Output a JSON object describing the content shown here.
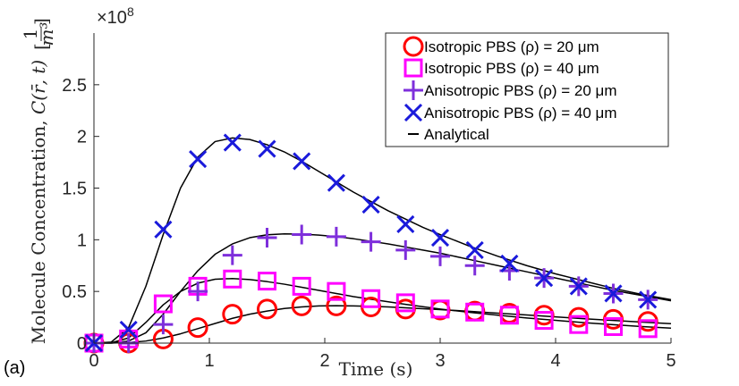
{
  "chart_data": {
    "type": "line",
    "panel_label": "(a)",
    "xlabel": "Time (s)",
    "ylabel": "Molecule Concentration, C(r̄, t) [1/m³]",
    "ylabel_plain": "Molecule Concentration, ",
    "ylabel_expr": "C(r̄, t)",
    "ylabel_unit_num": "1",
    "ylabel_unit_den": "m³",
    "y_multiplier": "×10",
    "y_multiplier_exp": "8",
    "xlim": [
      0,
      5
    ],
    "ylim": [
      0,
      3
    ],
    "xticks": [
      0,
      1,
      2,
      3,
      4,
      5
    ],
    "xtick_labels": [
      "0",
      "1",
      "2",
      "3",
      "4",
      "5"
    ],
    "yticks": [
      0,
      0.5,
      1,
      1.5,
      2,
      2.5
    ],
    "ytick_labels": [
      "0",
      "0.5",
      "1",
      "1.5",
      "2",
      "2.5"
    ],
    "grid": false,
    "legend_position": "top-right",
    "colors": {
      "iso20": "#ff0000",
      "iso40": "#ff00ff",
      "aniso20": "#7e2fdb",
      "aniso40": "#1a1adb",
      "analytical": "#000000"
    },
    "series": [
      {
        "name": "Isotropic PBS (ρ) = 20 μm",
        "marker": "circle",
        "x": [
          0,
          0.3,
          0.6,
          0.9,
          1.2,
          1.5,
          1.8,
          2.1,
          2.4,
          2.7,
          3.0,
          3.3,
          3.6,
          3.9,
          4.2,
          4.5,
          4.8
        ],
        "values": [
          0.0,
          0.0,
          0.04,
          0.15,
          0.28,
          0.33,
          0.36,
          0.36,
          0.35,
          0.33,
          0.32,
          0.31,
          0.29,
          0.27,
          0.25,
          0.23,
          0.21
        ]
      },
      {
        "name": "Isotropic PBS (ρ) = 40 μm",
        "marker": "square",
        "x": [
          0,
          0.3,
          0.6,
          0.9,
          1.2,
          1.5,
          1.8,
          2.1,
          2.4,
          2.7,
          3.0,
          3.3,
          3.6,
          3.9,
          4.2,
          4.5,
          4.8
        ],
        "values": [
          0.0,
          0.04,
          0.38,
          0.55,
          0.62,
          0.6,
          0.55,
          0.5,
          0.43,
          0.39,
          0.33,
          0.3,
          0.27,
          0.22,
          0.18,
          0.16,
          0.14
        ]
      },
      {
        "name": "Anisotropic PBS (ρ) = 20 μm",
        "marker": "plus",
        "x": [
          0,
          0.3,
          0.6,
          0.9,
          1.2,
          1.5,
          1.8,
          2.1,
          2.4,
          2.7,
          3.0,
          3.3,
          3.6,
          3.9,
          4.2,
          4.5,
          4.8
        ],
        "values": [
          0.0,
          0.0,
          0.18,
          0.5,
          0.85,
          1.02,
          1.05,
          1.03,
          0.98,
          0.9,
          0.84,
          0.75,
          0.7,
          0.63,
          0.55,
          0.48,
          0.42
        ]
      },
      {
        "name": "Anisotropic PBS (ρ) = 40 μm",
        "marker": "x",
        "x": [
          0,
          0.3,
          0.6,
          0.9,
          1.2,
          1.5,
          1.8,
          2.1,
          2.4,
          2.7,
          3.0,
          3.3,
          3.6,
          3.9,
          4.2,
          4.5,
          4.8
        ],
        "values": [
          0.0,
          0.13,
          1.1,
          1.78,
          1.94,
          1.88,
          1.76,
          1.55,
          1.34,
          1.15,
          1.02,
          0.9,
          0.77,
          0.63,
          0.55,
          0.48,
          0.42
        ]
      }
    ],
    "analytical": {
      "name": "Analytical",
      "curves": [
        {
          "x": [
            0,
            0.15,
            0.3,
            0.45,
            0.6,
            0.75,
            0.9,
            1.05,
            1.2,
            1.35,
            1.5,
            1.65,
            1.8,
            1.95,
            2.1,
            2.25,
            2.4,
            2.55,
            2.7,
            2.85,
            3.0,
            3.25,
            3.5,
            3.75,
            4.0,
            4.25,
            4.5,
            4.75,
            5.0
          ],
          "values": [
            0,
            0.0,
            0.005,
            0.02,
            0.05,
            0.09,
            0.14,
            0.19,
            0.24,
            0.28,
            0.31,
            0.335,
            0.35,
            0.36,
            0.362,
            0.36,
            0.356,
            0.35,
            0.342,
            0.333,
            0.324,
            0.308,
            0.29,
            0.272,
            0.254,
            0.236,
            0.219,
            0.203,
            0.188
          ]
        },
        {
          "x": [
            0,
            0.15,
            0.3,
            0.45,
            0.6,
            0.75,
            0.9,
            1.05,
            1.2,
            1.35,
            1.5,
            1.65,
            1.8,
            1.95,
            2.1,
            2.25,
            2.4,
            2.55,
            2.7,
            2.85,
            3.0,
            3.25,
            3.5,
            3.75,
            4.0,
            4.25,
            4.5,
            4.75,
            5.0
          ],
          "values": [
            0,
            0.003,
            0.05,
            0.2,
            0.37,
            0.5,
            0.58,
            0.618,
            0.625,
            0.615,
            0.595,
            0.57,
            0.54,
            0.51,
            0.48,
            0.45,
            0.425,
            0.4,
            0.375,
            0.352,
            0.33,
            0.298,
            0.27,
            0.243,
            0.22,
            0.198,
            0.178,
            0.16,
            0.145
          ]
        },
        {
          "x": [
            0,
            0.15,
            0.3,
            0.45,
            0.6,
            0.75,
            0.9,
            1.05,
            1.2,
            1.35,
            1.5,
            1.65,
            1.8,
            1.95,
            2.1,
            2.25,
            2.4,
            2.55,
            2.7,
            2.85,
            3.0,
            3.25,
            3.5,
            3.75,
            4.0,
            4.25,
            4.5,
            4.75,
            5.0
          ],
          "values": [
            0,
            0.0,
            0.02,
            0.1,
            0.28,
            0.5,
            0.7,
            0.86,
            0.96,
            1.02,
            1.048,
            1.057,
            1.055,
            1.045,
            1.03,
            1.01,
            0.985,
            0.96,
            0.93,
            0.9,
            0.87,
            0.81,
            0.75,
            0.69,
            0.63,
            0.57,
            0.51,
            0.46,
            0.41
          ]
        },
        {
          "x": [
            0,
            0.15,
            0.3,
            0.45,
            0.6,
            0.75,
            0.9,
            1.05,
            1.2,
            1.35,
            1.5,
            1.65,
            1.8,
            1.95,
            2.1,
            2.25,
            2.4,
            2.55,
            2.7,
            2.85,
            3.0,
            3.25,
            3.5,
            3.75,
            4.0,
            4.25,
            4.5,
            4.75,
            5.0
          ],
          "values": [
            0,
            0.01,
            0.15,
            0.55,
            1.05,
            1.5,
            1.8,
            1.95,
            1.985,
            1.97,
            1.92,
            1.85,
            1.76,
            1.66,
            1.56,
            1.46,
            1.37,
            1.28,
            1.2,
            1.12,
            1.05,
            0.94,
            0.84,
            0.75,
            0.67,
            0.6,
            0.53,
            0.47,
            0.42
          ]
        }
      ]
    }
  }
}
